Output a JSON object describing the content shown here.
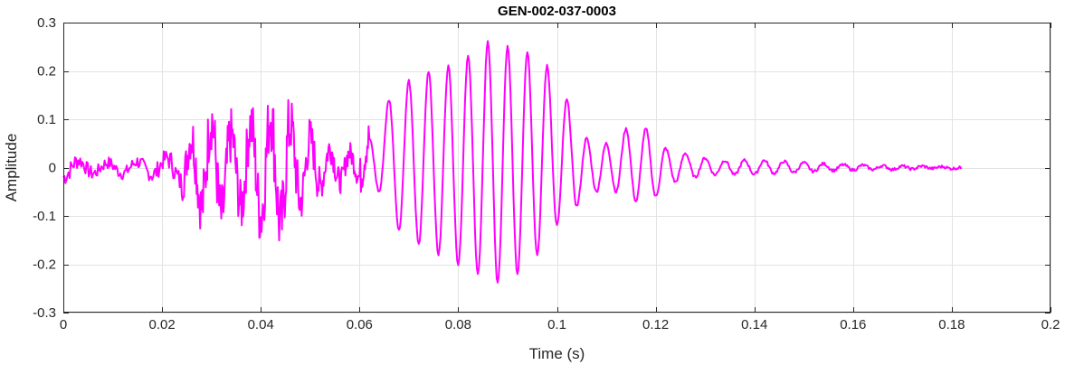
{
  "chart_data": {
    "type": "line",
    "title": "GEN-002-037-0003",
    "xlabel": "Time (s)",
    "ylabel": "Amplitude",
    "xlim": [
      0,
      0.2
    ],
    "ylim": [
      -0.3,
      0.3
    ],
    "xticks": [
      0,
      0.02,
      0.04,
      0.06,
      0.08,
      0.1,
      0.12,
      0.14,
      0.16,
      0.18,
      0.2
    ],
    "xtick_labels": [
      "0",
      "0.02",
      "0.04",
      "0.06",
      "0.08",
      "0.1",
      "0.12",
      "0.14",
      "0.16",
      "0.18",
      "0.2"
    ],
    "yticks": [
      -0.3,
      -0.2,
      -0.1,
      0,
      0.1,
      0.2,
      0.3
    ],
    "ytick_labels": [
      "-0.3",
      "-0.2",
      "-0.1",
      "0",
      "0.1",
      "0.2",
      "0.3"
    ],
    "grid": true,
    "line_color": "#ff00ff",
    "series": [
      {
        "x": [
          0.0,
          0.003,
          0.006,
          0.009,
          0.012,
          0.015,
          0.018,
          0.021,
          0.024,
          0.026,
          0.028,
          0.03,
          0.032,
          0.034,
          0.036,
          0.038,
          0.04,
          0.042,
          0.044,
          0.046,
          0.048,
          0.05,
          0.052,
          0.054,
          0.056,
          0.058,
          0.06,
          0.062,
          0.064,
          0.066,
          0.068,
          0.07,
          0.072,
          0.074,
          0.076,
          0.078,
          0.08,
          0.082,
          0.084,
          0.086,
          0.088,
          0.09,
          0.092,
          0.094,
          0.096,
          0.098,
          0.1,
          0.102,
          0.104,
          0.106,
          0.108,
          0.11,
          0.112,
          0.114,
          0.116,
          0.118,
          0.12,
          0.122,
          0.124,
          0.126,
          0.128,
          0.13,
          0.132,
          0.134,
          0.136,
          0.138,
          0.14,
          0.142,
          0.144,
          0.146,
          0.148,
          0.15,
          0.152,
          0.154,
          0.156,
          0.158,
          0.16,
          0.162,
          0.164,
          0.166,
          0.168,
          0.17,
          0.172,
          0.174,
          0.176,
          0.178,
          0.18,
          0.182
        ],
        "y": [
          -0.02,
          0.015,
          -0.012,
          0.01,
          -0.012,
          0.012,
          -0.015,
          0.02,
          -0.03,
          0.06,
          -0.08,
          0.1,
          -0.1,
          0.07,
          -0.08,
          0.09,
          -0.1,
          0.11,
          -0.12,
          0.09,
          -0.07,
          0.06,
          -0.04,
          0.04,
          -0.03,
          0.03,
          -0.02,
          0.06,
          -0.05,
          0.14,
          -0.13,
          0.18,
          -0.16,
          0.2,
          -0.18,
          0.21,
          -0.2,
          0.23,
          -0.22,
          0.26,
          -0.24,
          0.25,
          -0.22,
          0.24,
          -0.18,
          0.21,
          -0.12,
          0.14,
          -0.08,
          0.06,
          -0.05,
          0.05,
          -0.05,
          0.08,
          -0.07,
          0.08,
          -0.06,
          0.04,
          -0.03,
          0.03,
          -0.02,
          0.02,
          -0.015,
          0.015,
          -0.015,
          0.015,
          -0.014,
          0.015,
          -0.012,
          0.013,
          -0.01,
          0.01,
          -0.008,
          0.008,
          -0.006,
          0.006,
          -0.005,
          0.005,
          -0.004,
          0.004,
          -0.004,
          0.003,
          -0.003,
          0.003,
          -0.002,
          0.002,
          -0.002,
          0.0
        ]
      }
    ]
  }
}
